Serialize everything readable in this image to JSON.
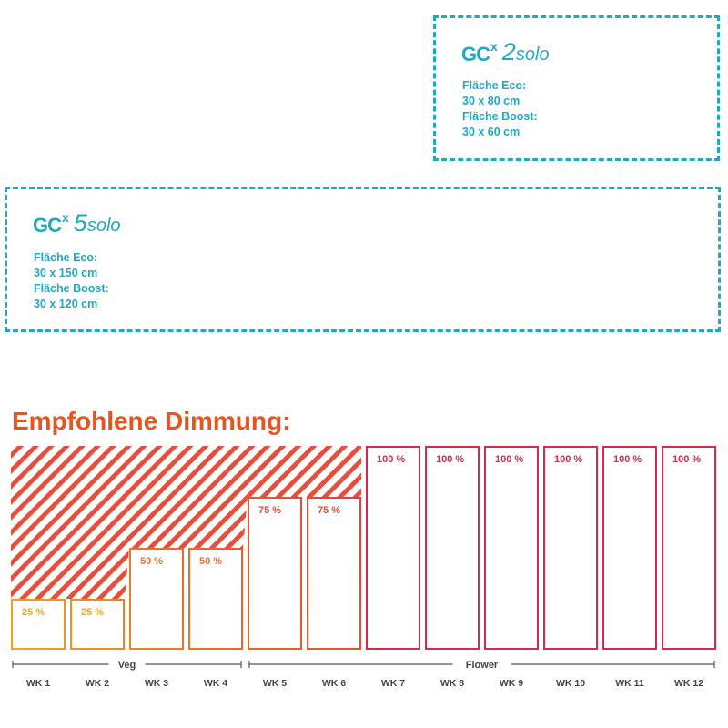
{
  "products": [
    {
      "id": "2solo",
      "logo": {
        "brand": "GC",
        "sup": "x",
        "number": "2",
        "suffix": "solo"
      },
      "specs": {
        "eco_label": "Fläche Eco:",
        "eco_value": "30 x 80 cm",
        "boost_label": "Fläche Boost:",
        "boost_value": "30 x 60 cm"
      }
    },
    {
      "id": "5solo",
      "logo": {
        "brand": "GC",
        "sup": "x",
        "number": "5",
        "suffix": "solo"
      },
      "specs": {
        "eco_label": "Fläche Eco:",
        "eco_value": "30 x 150 cm",
        "boost_label": "Fläche Boost:",
        "boost_value": "30 x 120 cm"
      }
    }
  ],
  "colors": {
    "teal": "#22a8c0",
    "title_orange": "#e8541e",
    "yellow": "#f4a51c",
    "orange": "#ec6b2d",
    "red": "#d42a4c"
  },
  "chart_data": {
    "type": "bar",
    "title": "Empfohlene Dimmung:",
    "categories": [
      "WK 1",
      "WK 2",
      "WK 3",
      "WK 4",
      "WK 5",
      "WK 6",
      "WK 7",
      "WK 8",
      "WK 9",
      "WK 10",
      "WK 11",
      "WK 12"
    ],
    "values": [
      25,
      25,
      50,
      50,
      75,
      75,
      100,
      100,
      100,
      100,
      100,
      100
    ],
    "value_labels": [
      "25 %",
      "25 %",
      "50 %",
      "50 %",
      "75 %",
      "75 %",
      "100 %",
      "100 %",
      "100 %",
      "100 %",
      "100 %",
      "100 %"
    ],
    "ylim": [
      0,
      100
    ],
    "phases": [
      {
        "label": "Veg",
        "start": 0,
        "end": 3
      },
      {
        "label": "Flower",
        "start": 4,
        "end": 11
      }
    ]
  }
}
